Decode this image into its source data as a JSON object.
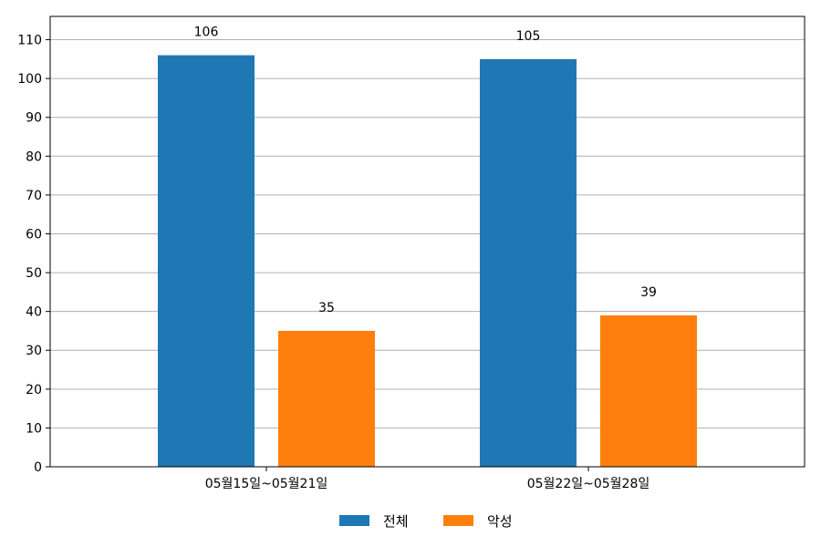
{
  "chart_data": {
    "type": "bar",
    "categories": [
      "05월15일~05월21일",
      "05월22일~05월28일"
    ],
    "series": [
      {
        "name": "전체",
        "values": [
          106,
          105
        ],
        "color": "#1f77b4"
      },
      {
        "name": "악성",
        "values": [
          35,
          39
        ],
        "color": "#ff7f0e"
      }
    ],
    "ylim": [
      0,
      116
    ],
    "yticks": [
      0,
      10,
      20,
      30,
      40,
      50,
      60,
      70,
      80,
      90,
      100,
      110
    ],
    "grid": true,
    "legend_position": "bottom-center",
    "title": "",
    "xlabel": "",
    "ylabel": ""
  }
}
